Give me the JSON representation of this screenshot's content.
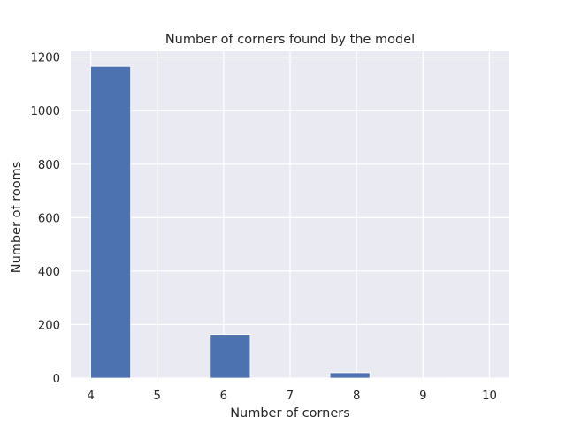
{
  "chart_data": {
    "type": "bar",
    "title": "Number of corners found by the model",
    "xlabel": "Number of corners",
    "ylabel": "Number of rooms",
    "xlim": [
      3.7,
      10.3
    ],
    "ylim": [
      0,
      1222
    ],
    "xticks": [
      4,
      5,
      6,
      7,
      8,
      9,
      10
    ],
    "yticks": [
      0,
      200,
      400,
      600,
      800,
      1000,
      1200
    ],
    "bins": [
      {
        "x0": 4.0,
        "x1": 4.6,
        "value": 1165
      },
      {
        "x0": 4.6,
        "x1": 5.2,
        "value": 0
      },
      {
        "x0": 5.2,
        "x1": 5.8,
        "value": 0
      },
      {
        "x0": 5.8,
        "x1": 6.4,
        "value": 163
      },
      {
        "x0": 6.4,
        "x1": 7.0,
        "value": 0
      },
      {
        "x0": 7.0,
        "x1": 7.6,
        "value": 0
      },
      {
        "x0": 7.6,
        "x1": 8.2,
        "value": 20
      },
      {
        "x0": 8.2,
        "x1": 8.8,
        "value": 0
      },
      {
        "x0": 8.8,
        "x1": 9.4,
        "value": 0
      },
      {
        "x0": 9.4,
        "x1": 10.0,
        "value": 1
      }
    ],
    "bar_color": "#4c72b0",
    "background_color": "#eaeaf2",
    "grid": true,
    "grid_color": "#ffffff"
  }
}
